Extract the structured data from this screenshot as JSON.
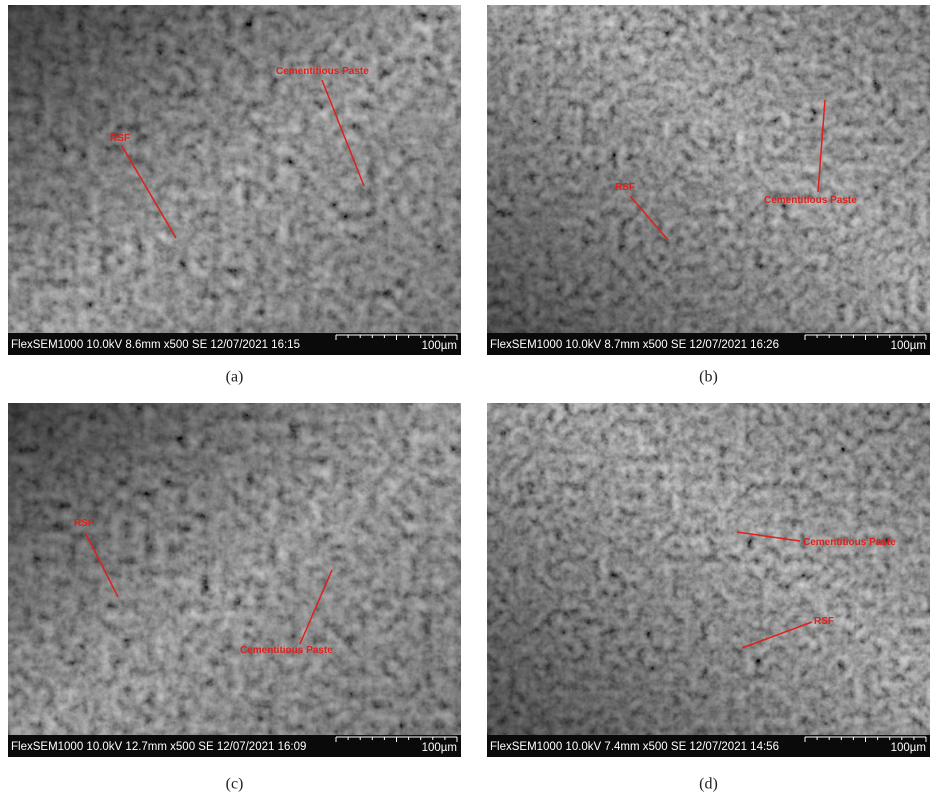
{
  "panels": [
    {
      "info": "FlexSEM1000 10.0kV 8.6mm x500 SE 12/07/2021 16:15",
      "scale": "100µm",
      "labels": [
        "RSF",
        "Cementitious Paste"
      ],
      "caption": "(a)"
    },
    {
      "info": "FlexSEM1000 10.0kV 8.7mm x500 SE 12/07/2021 16:26",
      "scale": "100µm",
      "labels": [
        "RSF",
        "Cementitious Paste"
      ],
      "caption": "(b)"
    },
    {
      "info": "FlexSEM1000 10.0kV 12.7mm x500 SE 12/07/2021 16:09",
      "scale": "100µm",
      "labels": [
        "RSF",
        "Cementitious Paste"
      ],
      "caption": "(c)"
    },
    {
      "info": "FlexSEM1000 10.0kV 7.4mm x500 SE 12/07/2021 14:56",
      "scale": "100µm",
      "labels": [
        "Cementitious Paste",
        "RSF"
      ],
      "caption": "(d)"
    }
  ]
}
